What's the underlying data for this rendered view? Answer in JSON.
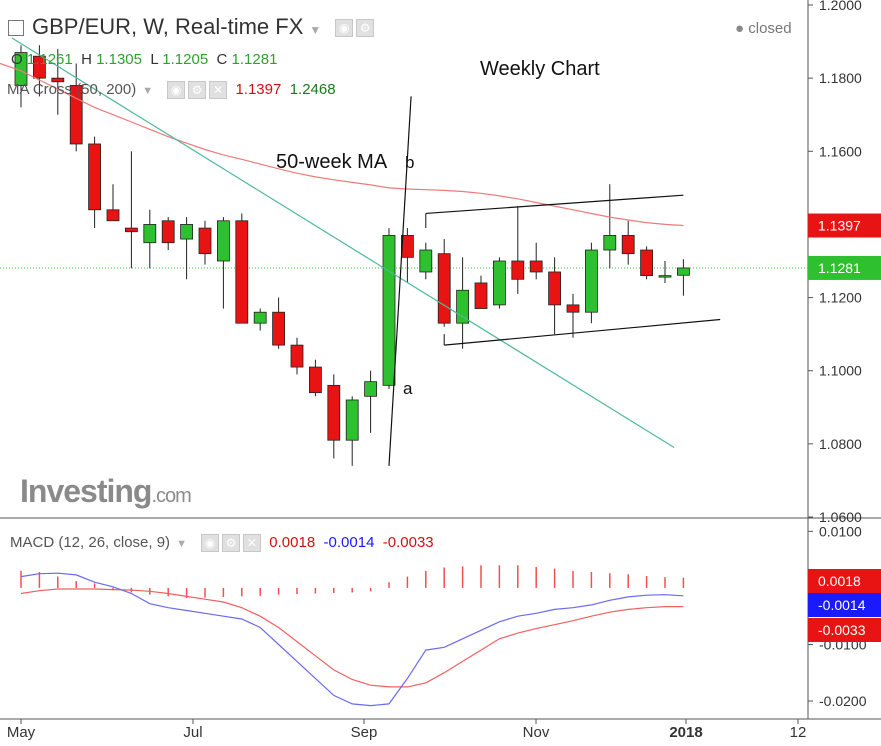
{
  "header": {
    "title": "GBP/EUR, W, Real-time FX",
    "status": "closed",
    "ohlc": {
      "o_label": "O",
      "o": "1.1261",
      "h_label": "H",
      "h": "1.1305",
      "l_label": "L",
      "l": "1.1205",
      "c_label": "C",
      "c": "1.1281"
    }
  },
  "ma_indicator": {
    "label": "MA Cross (50, 200)",
    "v1": "1.1397",
    "v2": "1.2468"
  },
  "macd_indicator": {
    "label": "MACD (12, 26, close, 9)",
    "v1": "0.0018",
    "v2": "-0.0014",
    "v3": "-0.0033"
  },
  "annotations": {
    "weekly": "Weekly Chart",
    "ma50": "50-week MA",
    "a": "a",
    "b": "b"
  },
  "brand": {
    "logo": "Investing",
    "suffix": ".com"
  },
  "colors": {
    "up": "#2ec02e",
    "down": "#e81414",
    "ma": "#f07a7a",
    "trend": "#4fb89a",
    "macd": "#6a6af0",
    "signal": "#f06060"
  },
  "price_axis": {
    "ticks": [
      "1.0600",
      "1.0800",
      "1.1000",
      "1.1200",
      "1.1400",
      "1.1600",
      "1.1800",
      "1.2000"
    ],
    "ylim": [
      1.06,
      1.2
    ]
  },
  "macd_axis": {
    "ticks": [
      "-0.0200",
      "-0.0100",
      "0.0000",
      "0.0100"
    ],
    "ylim": [
      -0.023,
      0.012
    ]
  },
  "price_labels": {
    "ma": "1.1397",
    "close": "1.1281"
  },
  "macd_labels": {
    "hist": "0.0018",
    "macd": "-0.0014",
    "signal": "-0.0033"
  },
  "x_axis": {
    "labels": [
      "May",
      "Jul",
      "Sep",
      "Nov",
      "2018",
      "12"
    ]
  },
  "chart_data": {
    "type": "candlestick",
    "title": "GBP/EUR, W, Real-time FX",
    "candles": [
      {
        "o": 1.178,
        "h": 1.189,
        "l": 1.172,
        "c": 1.187
      },
      {
        "o": 1.186,
        "h": 1.189,
        "l": 1.175,
        "c": 1.18
      },
      {
        "o": 1.18,
        "h": 1.188,
        "l": 1.17,
        "c": 1.179
      },
      {
        "o": 1.178,
        "h": 1.184,
        "l": 1.16,
        "c": 1.162
      },
      {
        "o": 1.162,
        "h": 1.164,
        "l": 1.139,
        "c": 1.144
      },
      {
        "o": 1.144,
        "h": 1.151,
        "l": 1.141,
        "c": 1.141
      },
      {
        "o": 1.139,
        "h": 1.16,
        "l": 1.128,
        "c": 1.138
      },
      {
        "o": 1.135,
        "h": 1.144,
        "l": 1.128,
        "c": 1.14
      },
      {
        "o": 1.141,
        "h": 1.142,
        "l": 1.133,
        "c": 1.135
      },
      {
        "o": 1.136,
        "h": 1.142,
        "l": 1.125,
        "c": 1.14
      },
      {
        "o": 1.139,
        "h": 1.141,
        "l": 1.129,
        "c": 1.132
      },
      {
        "o": 1.13,
        "h": 1.142,
        "l": 1.117,
        "c": 1.141
      },
      {
        "o": 1.141,
        "h": 1.143,
        "l": 1.114,
        "c": 1.113
      },
      {
        "o": 1.113,
        "h": 1.117,
        "l": 1.111,
        "c": 1.116
      },
      {
        "o": 1.116,
        "h": 1.12,
        "l": 1.106,
        "c": 1.107
      },
      {
        "o": 1.107,
        "h": 1.109,
        "l": 1.099,
        "c": 1.101
      },
      {
        "o": 1.101,
        "h": 1.103,
        "l": 1.093,
        "c": 1.094
      },
      {
        "o": 1.096,
        "h": 1.099,
        "l": 1.076,
        "c": 1.081
      },
      {
        "o": 1.081,
        "h": 1.093,
        "l": 1.074,
        "c": 1.092
      },
      {
        "o": 1.093,
        "h": 1.1,
        "l": 1.083,
        "c": 1.097
      },
      {
        "o": 1.096,
        "h": 1.139,
        "l": 1.095,
        "c": 1.137
      },
      {
        "o": 1.137,
        "h": 1.139,
        "l": 1.124,
        "c": 1.131
      },
      {
        "o": 1.127,
        "h": 1.135,
        "l": 1.125,
        "c": 1.133
      },
      {
        "o": 1.132,
        "h": 1.136,
        "l": 1.112,
        "c": 1.113
      },
      {
        "o": 1.113,
        "h": 1.131,
        "l": 1.106,
        "c": 1.122
      },
      {
        "o": 1.124,
        "h": 1.126,
        "l": 1.117,
        "c": 1.117
      },
      {
        "o": 1.118,
        "h": 1.131,
        "l": 1.117,
        "c": 1.13
      },
      {
        "o": 1.13,
        "h": 1.145,
        "l": 1.121,
        "c": 1.125
      },
      {
        "o": 1.13,
        "h": 1.135,
        "l": 1.125,
        "c": 1.127
      },
      {
        "o": 1.127,
        "h": 1.131,
        "l": 1.11,
        "c": 1.118
      },
      {
        "o": 1.118,
        "h": 1.121,
        "l": 1.109,
        "c": 1.116
      },
      {
        "o": 1.116,
        "h": 1.135,
        "l": 1.113,
        "c": 1.133
      },
      {
        "o": 1.133,
        "h": 1.151,
        "l": 1.128,
        "c": 1.137
      },
      {
        "o": 1.137,
        "h": 1.141,
        "l": 1.129,
        "c": 1.132
      },
      {
        "o": 1.133,
        "h": 1.134,
        "l": 1.125,
        "c": 1.126
      },
      {
        "o": 1.126,
        "h": 1.13,
        "l": 1.124,
        "c": 1.126
      },
      {
        "o": 1.1261,
        "h": 1.1305,
        "l": 1.1205,
        "c": 1.1281
      }
    ],
    "ma50": [
      1.182,
      1.1795,
      1.177,
      1.1745,
      1.172,
      1.17,
      1.168,
      1.166,
      1.164,
      1.1622,
      1.1605,
      1.159,
      1.1578,
      1.1565,
      1.1552,
      1.154,
      1.153,
      1.1522,
      1.1515,
      1.1508,
      1.15,
      1.1497,
      1.1495,
      1.1493,
      1.149,
      1.1485,
      1.1478,
      1.147,
      1.146,
      1.145,
      1.144,
      1.143,
      1.142,
      1.1412,
      1.1405,
      1.14,
      1.1397
    ],
    "macd_hist": [
      0.003,
      0.0028,
      0.002,
      0.0012,
      0.0008,
      -0.0003,
      -0.0008,
      -0.0012,
      -0.0015,
      -0.0018,
      -0.0017,
      -0.0016,
      -0.0015,
      -0.0014,
      -0.0012,
      -0.0011,
      -0.001,
      -0.0009,
      -0.0008,
      -0.0006,
      0.001,
      0.002,
      0.003,
      0.0036,
      0.0038,
      0.004,
      0.004,
      0.004,
      0.0037,
      0.0034,
      0.003,
      0.0028,
      0.0026,
      0.0024,
      0.0021,
      0.0019,
      0.0018
    ],
    "macd_line": [
      0.002,
      0.0025,
      0.0026,
      0.0023,
      0.001,
      0.0002,
      -0.001,
      -0.0028,
      -0.0035,
      -0.004,
      -0.0045,
      -0.005,
      -0.0055,
      -0.007,
      -0.01,
      -0.013,
      -0.016,
      -0.019,
      -0.0205,
      -0.0208,
      -0.0205,
      -0.016,
      -0.011,
      -0.0105,
      -0.009,
      -0.0075,
      -0.006,
      -0.005,
      -0.0045,
      -0.0038,
      -0.0035,
      -0.003,
      -0.0022,
      -0.0016,
      -0.0013,
      -0.0012,
      -0.0014
    ],
    "signal_line": [
      -0.001,
      -0.0005,
      -0.0002,
      -0.0002,
      -0.0002,
      -0.0003,
      -0.0004,
      -0.0006,
      -0.001,
      -0.0015,
      -0.002,
      -0.0025,
      -0.0035,
      -0.005,
      -0.007,
      -0.0095,
      -0.012,
      -0.0145,
      -0.0162,
      -0.0172,
      -0.0175,
      -0.0175,
      -0.0168,
      -0.015,
      -0.013,
      -0.011,
      -0.009,
      -0.008,
      -0.0072,
      -0.0065,
      -0.0058,
      -0.005,
      -0.0043,
      -0.0038,
      -0.0035,
      -0.0033,
      -0.0033
    ],
    "trendlines": [
      {
        "name": "downtrend",
        "x": [
          -0.5,
          35.5
        ],
        "y": [
          1.191,
          1.079
        ]
      },
      {
        "name": "channel-top",
        "x": [
          22,
          36
        ],
        "y": [
          1.143,
          1.148
        ]
      },
      {
        "name": "channel-bottom",
        "x": [
          23,
          38
        ],
        "y": [
          1.107,
          1.114
        ]
      },
      {
        "name": "a-b",
        "x": [
          20,
          21.2
        ],
        "y": [
          1.074,
          1.175
        ]
      }
    ]
  }
}
